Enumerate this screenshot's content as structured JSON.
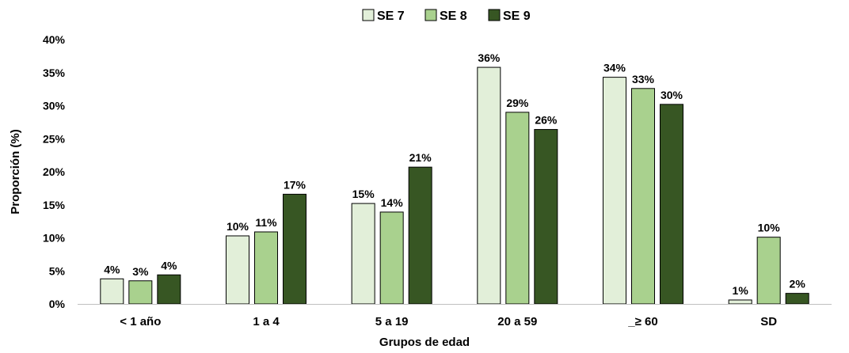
{
  "chart_data": {
    "type": "bar",
    "title": "",
    "xlabel": "Grupos de edad",
    "ylabel": "Proporción (%)",
    "categories": [
      "< 1 año",
      "1 a 4",
      "5 a 19",
      "20 a 59",
      "_≥ 60",
      "SD"
    ],
    "ylim": [
      0,
      40
    ],
    "yticks": [
      0,
      5,
      10,
      15,
      20,
      25,
      30,
      35,
      40
    ],
    "ytick_labels": [
      "0%",
      "5%",
      "10%",
      "15%",
      "20%",
      "25%",
      "30%",
      "35%",
      "40%"
    ],
    "grid": false,
    "legend_position": "top-center",
    "series": [
      {
        "name": "SE 7",
        "color": "#e2efd9",
        "values": [
          3.8,
          10.3,
          15.2,
          35.8,
          34.3,
          0.6
        ],
        "labels": [
          "4%",
          "10%",
          "15%",
          "36%",
          "34%",
          "1%"
        ]
      },
      {
        "name": "SE 8",
        "color": "#a9d18e",
        "values": [
          3.5,
          10.9,
          13.9,
          29.0,
          32.6,
          10.1
        ],
        "labels": [
          "3%",
          "11%",
          "14%",
          "29%",
          "33%",
          "10%"
        ]
      },
      {
        "name": "SE 9",
        "color": "#375623",
        "values": [
          4.4,
          16.6,
          20.7,
          26.4,
          30.2,
          1.6
        ],
        "labels": [
          "4%",
          "17%",
          "21%",
          "26%",
          "30%",
          "2%"
        ]
      }
    ]
  }
}
